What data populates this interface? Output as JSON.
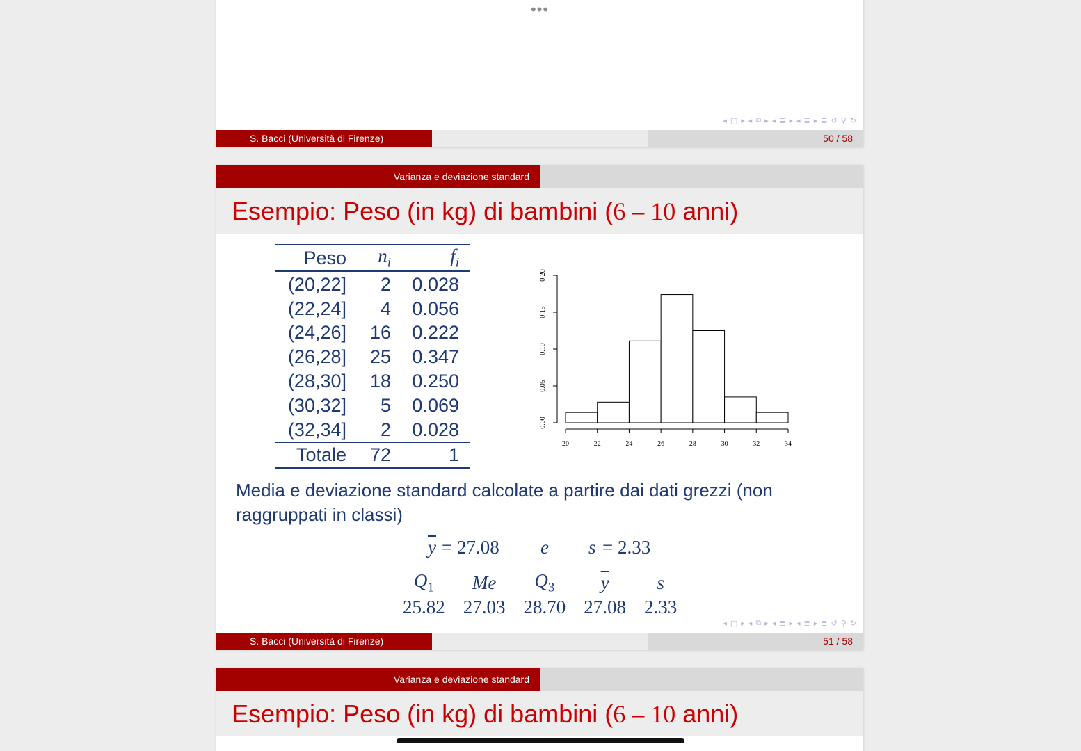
{
  "slide_top": {
    "more_dots": "•••",
    "footer": {
      "author": "S. Bacci  (Università di Firenze)",
      "page": "50 / 58"
    }
  },
  "slide_main": {
    "section": "Varianza e deviazione standard",
    "title_text": "Esempio: Peso (in kg) di bambini (",
    "title_math": "6 – 10",
    "title_end": " anni)",
    "table": {
      "headers": [
        "Peso",
        "n",
        "i",
        "f",
        "i"
      ],
      "rows": [
        [
          "(20,22]",
          "2",
          "0.028"
        ],
        [
          "(22,24]",
          "4",
          "0.056"
        ],
        [
          "(24,26]",
          "16",
          "0.222"
        ],
        [
          "(26,28]",
          "25",
          "0.347"
        ],
        [
          "(28,30]",
          "18",
          "0.250"
        ],
        [
          "(30,32]",
          "5",
          "0.069"
        ],
        [
          "(32,34]",
          "2",
          "0.028"
        ]
      ],
      "total": [
        "Totale",
        "72",
        "1"
      ]
    },
    "chart_data": {
      "type": "bar",
      "categories": [
        "(20,22]",
        "(22,24]",
        "(24,26]",
        "(26,28]",
        "(28,30]",
        "(30,32]",
        "(32,34]"
      ],
      "values": [
        0.014,
        0.028,
        0.111,
        0.174,
        0.125,
        0.035,
        0.014
      ],
      "x_ticks": [
        "20",
        "22",
        "24",
        "26",
        "28",
        "30",
        "32",
        "34"
      ],
      "y_ticks": [
        "0.00",
        "0.05",
        "0.10",
        "0.15",
        "0.20"
      ],
      "xlim": [
        20,
        34
      ],
      "ylim": [
        0,
        0.2
      ],
      "title": "",
      "xlabel": "",
      "ylabel": ""
    },
    "text": "Media e deviazione standard calcolate a partire dai dati grezzi (non raggruppati in classi)",
    "formula": {
      "ybar": "y",
      "ybar_value": "= 27.08",
      "e": "e",
      "s": "s",
      "s_value": "= 2.33"
    },
    "stats": {
      "headers": [
        {
          "sym": "Q",
          "sub": "1"
        },
        {
          "sym": "Me",
          "sub": ""
        },
        {
          "sym": "Q",
          "sub": "3"
        },
        {
          "sym": "y",
          "sub": ""
        },
        {
          "sym": "s",
          "sub": ""
        }
      ],
      "values": [
        "25.82",
        "27.03",
        "28.70",
        "27.08",
        "2.33"
      ]
    },
    "footer": {
      "author": "S. Bacci  (Università di Firenze)",
      "page": "51 / 58"
    }
  },
  "slide_bottom": {
    "section": "Varianza e deviazione standard",
    "title_text": "Esempio: Peso (in kg) di bambini (",
    "title_math": "6 – 10",
    "title_end": " anni)"
  },
  "nav_glyphs": [
    "◂",
    "□",
    "▸",
    "◂",
    "⧉",
    "▸",
    "◂",
    "≣",
    "▸",
    "◂",
    "≣",
    "▸",
    "≣",
    "↺",
    "⚲",
    "↻"
  ]
}
